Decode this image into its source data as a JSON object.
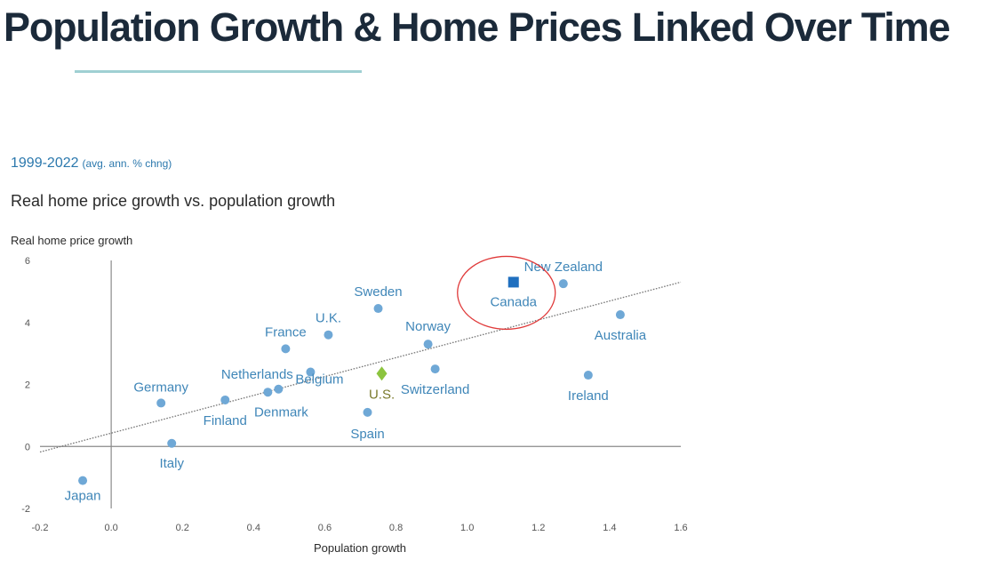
{
  "slide": {
    "title": "Population Growth & Home Prices Linked Over Time",
    "accent_color": "#9fd0d3"
  },
  "chart_data": {
    "type": "scatter",
    "title": "Real home price growth vs. population growth",
    "period": "1999-2022",
    "period_note": "(avg. ann. % chng)",
    "xlabel": "Population growth",
    "ylabel": "Real home price growth",
    "xlim": [
      -0.2,
      1.6
    ],
    "ylim": [
      -2,
      6
    ],
    "xticks": [
      "-0.2",
      "0.0",
      "0.2",
      "0.4",
      "0.6",
      "0.8",
      "1.0",
      "1.2",
      "1.4",
      "1.6"
    ],
    "yticks": [
      "-2",
      "0",
      "2",
      "4",
      "6"
    ],
    "grid": false,
    "colors": {
      "point": "#6fa8d6",
      "canada": "#1f6fbf",
      "us": "#8cc43f",
      "trend": "#777777",
      "highlight_circle": "#e03a3a",
      "label": "#3f86b8"
    },
    "trendline": {
      "x": [
        -0.2,
        1.6
      ],
      "y": [
        -0.18,
        5.3
      ]
    },
    "points": [
      {
        "name": "Japan",
        "x": -0.08,
        "y": -1.1
      },
      {
        "name": "Italy",
        "x": 0.17,
        "y": 0.1
      },
      {
        "name": "Germany",
        "x": 0.14,
        "y": 1.4
      },
      {
        "name": "Finland",
        "x": 0.32,
        "y": 1.5
      },
      {
        "name": "Netherlands",
        "x": 0.44,
        "y": 1.75
      },
      {
        "name": "Denmark",
        "x": 0.47,
        "y": 1.85
      },
      {
        "name": "France",
        "x": 0.49,
        "y": 3.15
      },
      {
        "name": "Belgium",
        "x": 0.56,
        "y": 2.4
      },
      {
        "name": "U.K.",
        "x": 0.61,
        "y": 3.6
      },
      {
        "name": "Spain",
        "x": 0.72,
        "y": 1.1
      },
      {
        "name": "Sweden",
        "x": 0.75,
        "y": 4.45
      },
      {
        "name": "U.S.",
        "x": 0.76,
        "y": 2.35
      },
      {
        "name": "Norway",
        "x": 0.89,
        "y": 3.3
      },
      {
        "name": "Switzerland",
        "x": 0.91,
        "y": 2.5
      },
      {
        "name": "Canada",
        "x": 1.13,
        "y": 5.3
      },
      {
        "name": "New Zealand",
        "x": 1.27,
        "y": 5.25
      },
      {
        "name": "Ireland",
        "x": 1.34,
        "y": 2.3
      },
      {
        "name": "Australia",
        "x": 1.43,
        "y": 4.25
      }
    ]
  }
}
